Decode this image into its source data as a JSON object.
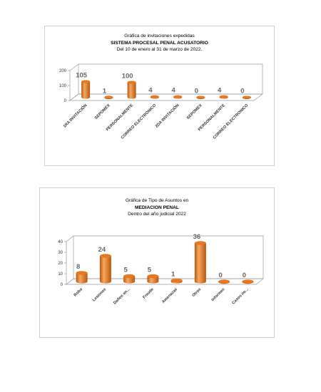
{
  "colors": {
    "bar": "#e87722",
    "bar_light": "#f6a861",
    "bar_dark": "#b8560d",
    "label": "#666666",
    "axis": "#9a9a9a"
  },
  "chart_data": [
    {
      "type": "bar",
      "title": "Gráfica de invitaciones expedidas",
      "subtitle": "SISTEMA PROCESAL PENAL ACUSATORIO",
      "subtitle2": "Del  10  de enero al 31 de marzo de 2022.",
      "categories": [
        "1RA INVITACIÓN",
        "SEPOMEX",
        "PERSONALMENTE",
        "CORREO ELECTRONICO",
        "2DA INVITACIÓN",
        "SEPOMEX",
        "PERSONALMENTE",
        "CORREO ELECTRONICO"
      ],
      "values": [
        105,
        1,
        100,
        4,
        4,
        0,
        4,
        0
      ],
      "yticks": [
        0,
        100,
        200
      ],
      "ylim": [
        0,
        200
      ],
      "xlabel": "",
      "ylabel": "",
      "grid": false,
      "style": "3d-cylinder"
    },
    {
      "type": "bar",
      "title": "Gráfica de Tipo de Asuntos en",
      "subtitle": "MEDIACION PENAL",
      "subtitle2": "Dentro del año judicial 2022",
      "categories": [
        "Robo",
        "Lesiones",
        "Daños en...",
        "Fraude",
        "Amenazas",
        "Otros",
        "Informes",
        "Casos no..."
      ],
      "values": [
        8,
        24,
        5,
        5,
        1,
        36,
        0,
        0
      ],
      "yticks": [
        0,
        10,
        20,
        30,
        40
      ],
      "ylim": [
        0,
        40
      ],
      "xlabel": "",
      "ylabel": "",
      "grid": false,
      "style": "3d-cylinder"
    }
  ]
}
